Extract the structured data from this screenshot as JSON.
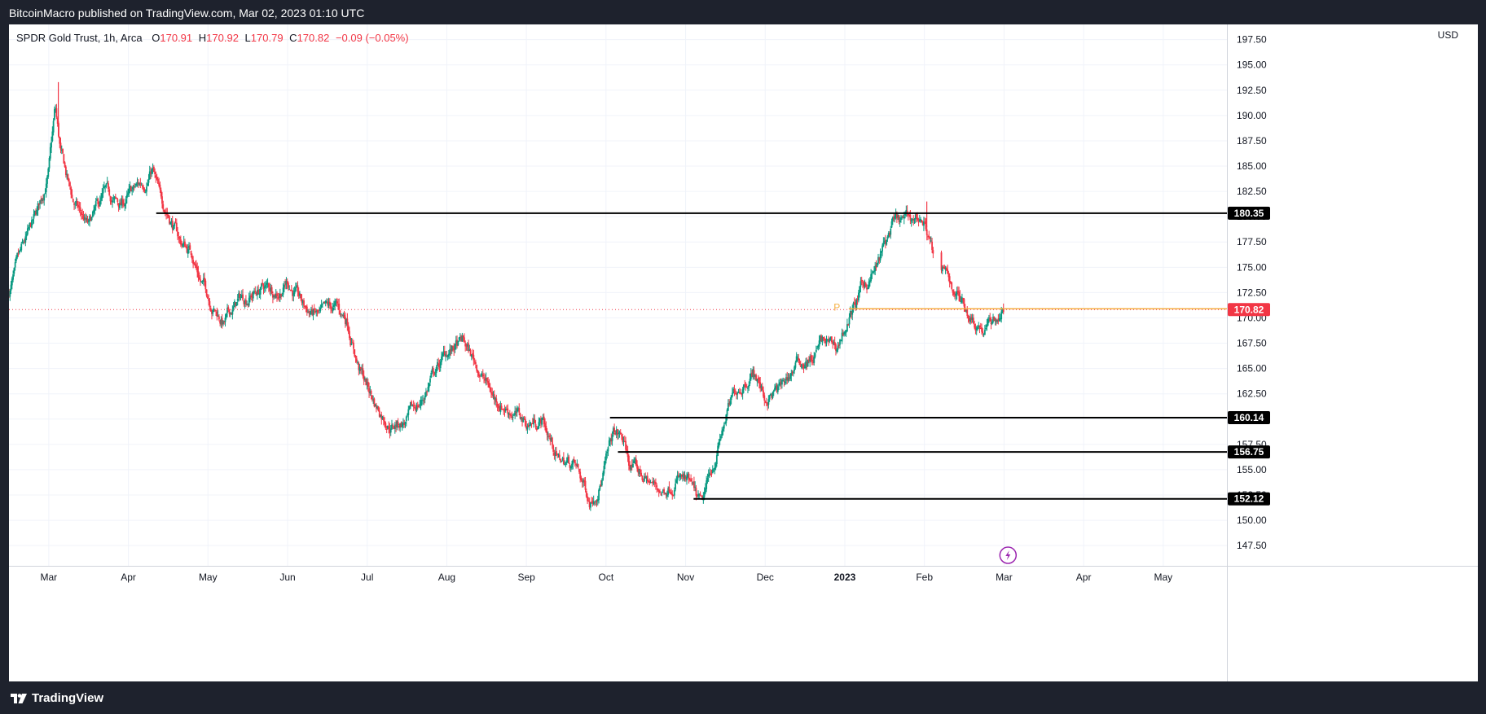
{
  "header": {
    "publisher_line": "BitcoinMacro published on TradingView.com, Mar 02, 2023 01:10 UTC"
  },
  "legend": {
    "symbol": "SPDR Gold Trust, 1h, Arca",
    "o_label": "O",
    "o_value": "170.91",
    "h_label": "H",
    "h_value": "170.92",
    "l_label": "L",
    "l_value": "170.79",
    "c_label": "C",
    "c_value": "170.82",
    "change": "−0.09 (−0.05%)"
  },
  "currency": "USD",
  "footer": {
    "brand": "TradingView"
  },
  "colors": {
    "up": "#089981",
    "down": "#f23645",
    "grid": "#f0f3fa",
    "pivot_line": "#f5b041",
    "current_price": "#f23645",
    "level_line": "#000000",
    "event_icon": "#9c27b0"
  },
  "chart_data": {
    "type": "candlestick",
    "ylim": [
      145.5,
      199
    ],
    "yticks": [
      "197.50",
      "195.00",
      "192.50",
      "190.00",
      "187.50",
      "185.00",
      "182.50",
      "180.00",
      "177.50",
      "175.00",
      "172.50",
      "170.00",
      "167.50",
      "165.00",
      "162.50",
      "160.00",
      "157.50",
      "155.00",
      "152.50",
      "150.00",
      "147.50"
    ],
    "xticks": [
      {
        "label": "Mar",
        "t": 1.3,
        "bold": false
      },
      {
        "label": "Apr",
        "t": 2.3,
        "bold": false
      },
      {
        "label": "May",
        "t": 3.3,
        "bold": false
      },
      {
        "label": "Jun",
        "t": 4.3,
        "bold": false
      },
      {
        "label": "Jul",
        "t": 5.3,
        "bold": false
      },
      {
        "label": "Aug",
        "t": 6.3,
        "bold": false
      },
      {
        "label": "Sep",
        "t": 7.3,
        "bold": false
      },
      {
        "label": "Oct",
        "t": 8.3,
        "bold": false
      },
      {
        "label": "Nov",
        "t": 9.3,
        "bold": false
      },
      {
        "label": "Dec",
        "t": 10.3,
        "bold": false
      },
      {
        "label": "2023",
        "t": 11.3,
        "bold": true
      },
      {
        "label": "Feb",
        "t": 12.3,
        "bold": false
      },
      {
        "label": "Mar",
        "t": 13.3,
        "bold": false
      },
      {
        "label": "Apr",
        "t": 14.3,
        "bold": false
      },
      {
        "label": "May",
        "t": 15.3,
        "bold": false
      }
    ],
    "xlim": [
      0.8,
      16.1
    ],
    "price_path": [
      [
        0.8,
        172.6
      ],
      [
        1.0,
        177.0
      ],
      [
        1.15,
        180.0
      ],
      [
        1.3,
        184.5
      ],
      [
        1.38,
        190.5
      ],
      [
        1.45,
        186.0
      ],
      [
        1.6,
        181.5
      ],
      [
        1.8,
        178.8
      ],
      [
        2.0,
        182.0
      ],
      [
        2.2,
        181.0
      ],
      [
        2.5,
        183.5
      ],
      [
        2.6,
        184.8
      ],
      [
        2.7,
        181.5
      ],
      [
        2.8,
        180.5
      ],
      [
        2.95,
        177.5
      ],
      [
        3.1,
        176.5
      ],
      [
        3.2,
        174.0
      ],
      [
        3.35,
        171.5
      ],
      [
        3.5,
        169.5
      ],
      [
        3.7,
        171.8
      ],
      [
        4.0,
        173.0
      ],
      [
        4.2,
        172.8
      ],
      [
        4.3,
        173.8
      ],
      [
        4.5,
        171.0
      ],
      [
        4.7,
        170.0
      ],
      [
        4.9,
        170.8
      ],
      [
        5.05,
        169.8
      ],
      [
        5.2,
        165.0
      ],
      [
        5.4,
        161.5
      ],
      [
        5.6,
        159.5
      ],
      [
        5.8,
        159.8
      ],
      [
        6.0,
        162.0
      ],
      [
        6.1,
        164.0
      ],
      [
        6.3,
        166.5
      ],
      [
        6.5,
        167.5
      ],
      [
        6.7,
        165.0
      ],
      [
        6.9,
        162.0
      ],
      [
        7.1,
        161.0
      ],
      [
        7.3,
        159.5
      ],
      [
        7.5,
        160.0
      ],
      [
        7.7,
        156.0
      ],
      [
        7.9,
        155.5
      ],
      [
        8.1,
        152.0
      ],
      [
        8.25,
        154.5
      ],
      [
        8.4,
        158.5
      ],
      [
        8.5,
        158.0
      ],
      [
        8.6,
        155.5
      ],
      [
        8.8,
        154.0
      ],
      [
        9.0,
        152.8
      ],
      [
        9.2,
        154.5
      ],
      [
        9.35,
        153.2
      ],
      [
        9.5,
        151.0
      ],
      [
        9.65,
        155.5
      ],
      [
        9.8,
        160.0
      ],
      [
        9.95,
        163.0
      ],
      [
        10.15,
        165.0
      ],
      [
        10.3,
        162.0
      ],
      [
        10.5,
        163.0
      ],
      [
        10.7,
        165.5
      ],
      [
        10.9,
        166.0
      ],
      [
        11.0,
        167.5
      ],
      [
        11.2,
        167.0
      ],
      [
        11.3,
        169.0
      ],
      [
        11.5,
        172.5
      ],
      [
        11.7,
        175.0
      ],
      [
        11.9,
        179.0
      ],
      [
        12.1,
        179.5
      ],
      [
        12.25,
        180.0
      ],
      [
        12.35,
        178.5
      ],
      [
        12.45,
        174.5
      ],
      [
        12.6,
        173.8
      ],
      [
        12.75,
        172.0
      ],
      [
        12.9,
        170.2
      ],
      [
        13.05,
        169.0
      ],
      [
        13.2,
        170.0
      ],
      [
        13.3,
        170.8
      ]
    ],
    "seg_starts": [
      0.8,
      1.62,
      2.42,
      3.3,
      4.3,
      5.3,
      6.3,
      7.32,
      8.32,
      9.32,
      10.32,
      11.35,
      12.52
    ],
    "gaps": [
      [
        12.42,
        12.5
      ]
    ],
    "spikes": [
      [
        1.42,
        188.0,
        193.3
      ],
      [
        12.33,
        179.0,
        181.5
      ]
    ],
    "last_time": 13.3,
    "current_price": 170.82,
    "levels": [
      {
        "value": 180.35,
        "label": "180.35",
        "from": 2.65
      },
      {
        "value": 160.14,
        "label": "160.14",
        "from": 8.35
      },
      {
        "value": 156.75,
        "label": "156.75",
        "from": 8.45
      },
      {
        "value": 152.12,
        "label": "152.12",
        "from": 9.4
      }
    ],
    "pivot": {
      "label": "P",
      "value": 170.9,
      "from": 11.35,
      "marker_t": 11.2
    },
    "event_icon_t": 13.35
  }
}
